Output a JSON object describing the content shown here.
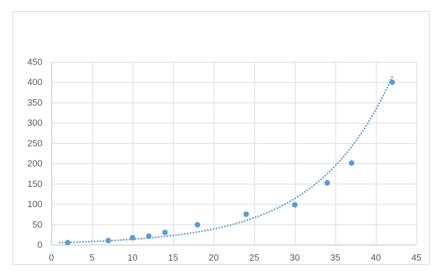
{
  "chart_data": {
    "type": "scatter",
    "title": "",
    "xlabel": "",
    "ylabel": "",
    "xlim": [
      0,
      45
    ],
    "ylim": [
      0,
      450
    ],
    "x_ticks": [
      0,
      5,
      10,
      15,
      20,
      25,
      30,
      35,
      40,
      45
    ],
    "y_ticks": [
      0,
      50,
      100,
      150,
      200,
      250,
      300,
      350,
      400,
      450
    ],
    "grid": true,
    "legend": "none",
    "series": [
      {
        "x": [
          2,
          7,
          10,
          12,
          14,
          18,
          24,
          30,
          34,
          37,
          42
        ],
        "y": [
          5,
          10,
          17,
          21,
          30,
          49,
          75,
          98,
          152,
          201,
          400
        ],
        "marker_color": "#5b9bd5"
      }
    ],
    "trendline": {
      "type": "exponential",
      "style": "dotted",
      "color": "#5b9bd5",
      "x_range": [
        1,
        42
      ],
      "y_start": 5,
      "y_end": 413
    },
    "colors": {
      "grid": "#d9d9d9",
      "axis": "#bfbfbf",
      "text": "#595959"
    }
  }
}
